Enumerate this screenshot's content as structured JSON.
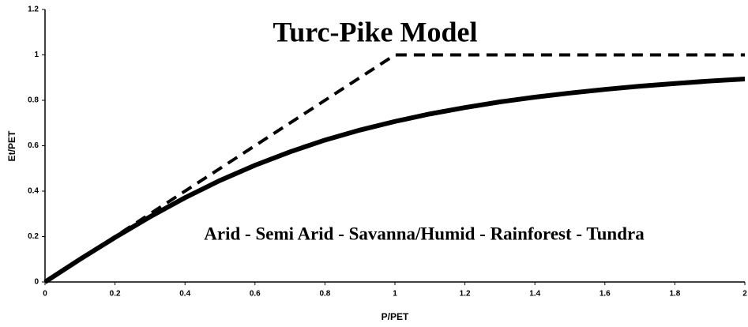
{
  "chart_data": {
    "type": "line",
    "title": "Turc-Pike Model",
    "annotation": "Arid - Semi Arid - Savanna/Humid - Rainforest - Tundra",
    "x_label": "P/PET",
    "y_label": "Et/PET",
    "series": [
      {
        "color": "#000000",
        "style": "solid",
        "x": [
          0,
          0.1,
          0.2,
          0.3,
          0.4,
          0.5,
          0.6,
          0.7,
          0.8,
          0.9,
          1,
          1.1,
          1.2,
          1.3,
          1.4,
          1.5,
          1.6,
          1.7,
          1.8,
          1.9,
          2
        ],
        "values": [
          0,
          0.1,
          0.196,
          0.287,
          0.371,
          0.447,
          0.514,
          0.573,
          0.625,
          0.669,
          0.707,
          0.74,
          0.768,
          0.793,
          0.814,
          0.832,
          0.848,
          0.862,
          0.874,
          0.885,
          0.894
        ]
      },
      {
        "color": "#000000",
        "style": "dashed",
        "x": [
          0,
          1,
          2
        ],
        "values": [
          0,
          1,
          1
        ]
      }
    ],
    "xlim": [
      0,
      2
    ],
    "xticks": [
      0,
      0.2,
      0.4,
      0.6,
      0.8,
      1,
      1.2,
      1.4,
      1.6,
      1.8,
      2
    ],
    "ylim": [
      0,
      1.2
    ],
    "yticks": [
      0,
      0.2,
      0.4,
      0.6,
      0.8,
      1,
      1.2
    ],
    "grid": false
  }
}
